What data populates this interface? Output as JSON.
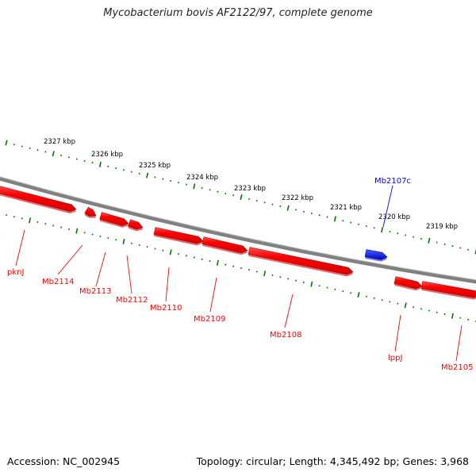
{
  "title": "Mycobacterium bovis AF2122/97, complete genome",
  "footer": {
    "accession": "Accession: NC_002945",
    "stats": "Topology: circular; Length: 4,345,492 bp; Genes: 3,968"
  },
  "colors": {
    "forward_gene": "#ff0000",
    "reverse_gene": "#0000ff",
    "backbone": "#808080",
    "ticks": "#007700"
  },
  "kbp_labels": [
    "2327 kbp",
    "2326 kbp",
    "2325 kbp",
    "2324 kbp",
    "2323 kbp",
    "2322 kbp",
    "2321 kbp",
    "2320 kbp",
    "2319 kbp"
  ],
  "genes": [
    {
      "label": "pknJ",
      "strand": "forward"
    },
    {
      "label": "Mb2114",
      "strand": "forward"
    },
    {
      "label": "Mb2113",
      "strand": "forward"
    },
    {
      "label": "Mb2112",
      "strand": "forward"
    },
    {
      "label": "Mb2110",
      "strand": "forward"
    },
    {
      "label": "Mb2109",
      "strand": "forward"
    },
    {
      "label": "Mb2108",
      "strand": "forward"
    },
    {
      "label": "Mb2107c",
      "strand": "reverse"
    },
    {
      "label": "lppJ",
      "strand": "forward"
    },
    {
      "label": "Mb2105",
      "strand": "forward"
    }
  ]
}
